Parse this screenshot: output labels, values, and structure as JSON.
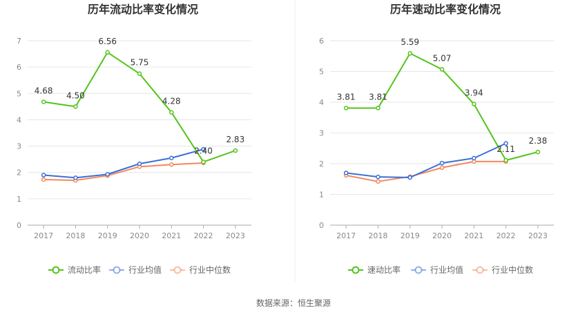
{
  "source_text": "数据来源：恒生聚源",
  "colors": {
    "main": "#52c41a",
    "avg": "#3a6fd8",
    "median": "#f4875a",
    "grid": "#e6e6e6",
    "axis": "#aaaaaa",
    "divider": "#eeeeee"
  },
  "chart_data": [
    {
      "type": "line",
      "title": "历年流动比率变化情况",
      "categories": [
        "2017",
        "2018",
        "2019",
        "2020",
        "2021",
        "2022",
        "2023"
      ],
      "ylim": [
        0,
        7
      ],
      "yticks": [
        0,
        1,
        2,
        3,
        4,
        5,
        6,
        7
      ],
      "grid": true,
      "legend_position": "bottom-center",
      "series": [
        {
          "name": "流动比率",
          "color_key": "main",
          "values": [
            4.68,
            4.5,
            6.56,
            5.75,
            4.28,
            2.4,
            2.83
          ],
          "labels": [
            "4.68",
            "4.50",
            "6.56",
            "5.75",
            "4.28",
            "2.40",
            "2.83"
          ]
        },
        {
          "name": "行业均值",
          "color_key": "avg",
          "values": [
            1.9,
            1.8,
            1.93,
            2.33,
            2.55,
            2.88,
            null
          ]
        },
        {
          "name": "行业中位数",
          "color_key": "median",
          "values": [
            1.73,
            1.7,
            1.88,
            2.22,
            2.3,
            2.36,
            null
          ]
        }
      ]
    },
    {
      "type": "line",
      "title": "历年速动比率变化情况",
      "categories": [
        "2017",
        "2018",
        "2019",
        "2020",
        "2021",
        "2022",
        "2023"
      ],
      "ylim": [
        0,
        6
      ],
      "yticks": [
        0,
        1,
        2,
        3,
        4,
        5,
        6
      ],
      "grid": true,
      "legend_position": "bottom-center",
      "series": [
        {
          "name": "速动比率",
          "color_key": "main",
          "values": [
            3.81,
            3.81,
            5.59,
            5.07,
            3.94,
            2.11,
            2.38
          ],
          "labels": [
            "3.81",
            "3.81",
            "5.59",
            "5.07",
            "3.94",
            "2.11",
            "2.38"
          ]
        },
        {
          "name": "行业均值",
          "color_key": "avg",
          "values": [
            1.7,
            1.57,
            1.55,
            2.02,
            2.18,
            2.66,
            null
          ]
        },
        {
          "name": "行业中位数",
          "color_key": "median",
          "values": [
            1.62,
            1.42,
            1.58,
            1.87,
            2.07,
            2.07,
            null
          ]
        }
      ]
    }
  ]
}
